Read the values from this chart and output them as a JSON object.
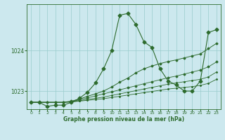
{
  "xlabel": "Graphe pression niveau de la mer (hPa)",
  "background_color": "#cce8ee",
  "grid_color": "#99cccc",
  "line_color": "#2d6b2d",
  "ylim": [
    1022.55,
    1025.15
  ],
  "xlim": [
    -0.5,
    23.5
  ],
  "yticks": [
    1023,
    1024
  ],
  "xticks": [
    0,
    1,
    2,
    3,
    4,
    5,
    6,
    7,
    8,
    9,
    10,
    11,
    12,
    13,
    14,
    15,
    16,
    17,
    18,
    19,
    20,
    21,
    22,
    23
  ],
  "series1": [
    1022.72,
    1022.72,
    1022.62,
    1022.65,
    1022.65,
    1022.72,
    1022.82,
    1022.97,
    1023.2,
    1023.55,
    1024.0,
    1024.88,
    1024.92,
    1024.65,
    1024.22,
    1024.08,
    1023.55,
    1023.25,
    1023.15,
    1023.0,
    1023.0,
    1023.25,
    1024.45,
    1024.52
  ],
  "series2": [
    1022.72,
    1022.72,
    1022.72,
    1022.72,
    1022.72,
    1022.75,
    1022.8,
    1022.87,
    1022.93,
    1023.0,
    1023.1,
    1023.22,
    1023.32,
    1023.45,
    1023.55,
    1023.62,
    1023.68,
    1023.73,
    1023.77,
    1023.82,
    1023.87,
    1023.92,
    1024.05,
    1024.18
  ],
  "series3": [
    1022.72,
    1022.72,
    1022.72,
    1022.72,
    1022.72,
    1022.74,
    1022.78,
    1022.83,
    1022.88,
    1022.93,
    1022.98,
    1023.03,
    1023.08,
    1023.13,
    1023.18,
    1023.23,
    1023.28,
    1023.33,
    1023.37,
    1023.42,
    1023.47,
    1023.52,
    1023.6,
    1023.72
  ],
  "series4": [
    1022.72,
    1022.72,
    1022.72,
    1022.72,
    1022.72,
    1022.73,
    1022.76,
    1022.79,
    1022.82,
    1022.85,
    1022.89,
    1022.93,
    1022.97,
    1023.01,
    1023.05,
    1023.09,
    1023.13,
    1023.17,
    1023.2,
    1023.23,
    1023.26,
    1023.29,
    1023.35,
    1023.47
  ],
  "series5": [
    1022.72,
    1022.72,
    1022.72,
    1022.72,
    1022.72,
    1022.73,
    1022.75,
    1022.77,
    1022.79,
    1022.81,
    1022.84,
    1022.87,
    1022.9,
    1022.93,
    1022.96,
    1022.99,
    1023.02,
    1023.05,
    1023.07,
    1023.09,
    1023.11,
    1023.14,
    1023.19,
    1023.29
  ]
}
